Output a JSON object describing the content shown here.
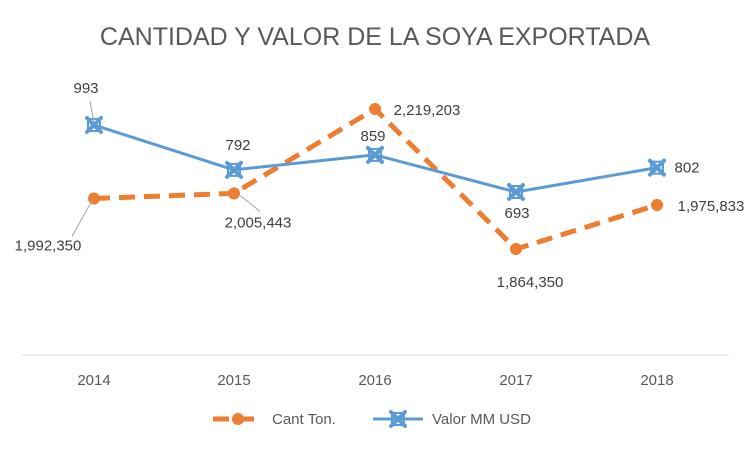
{
  "chart_data": {
    "type": "line",
    "title": "CANTIDAD Y VALOR DE LA SOYA EXPORTADA",
    "categories": [
      "2014",
      "2015",
      "2016",
      "2017",
      "2018"
    ],
    "series": [
      {
        "name": "Cant Ton.",
        "values": [
          1992350,
          2005443,
          2219203,
          1864350,
          1975833
        ],
        "labels": [
          "1,992,350",
          "2,005,443",
          "2,219,203",
          "1,864,350",
          "1,975,833"
        ],
        "color": "#ED7D31",
        "style": "dashed",
        "marker": "circle"
      },
      {
        "name": "Valor MM USD",
        "values": [
          993,
          792,
          859,
          693,
          802
        ],
        "labels": [
          "993",
          "792",
          "859",
          "693",
          "802"
        ],
        "color": "#5B9BD5",
        "style": "solid",
        "marker": "x"
      }
    ],
    "legend": "bottom",
    "grid": false
  }
}
